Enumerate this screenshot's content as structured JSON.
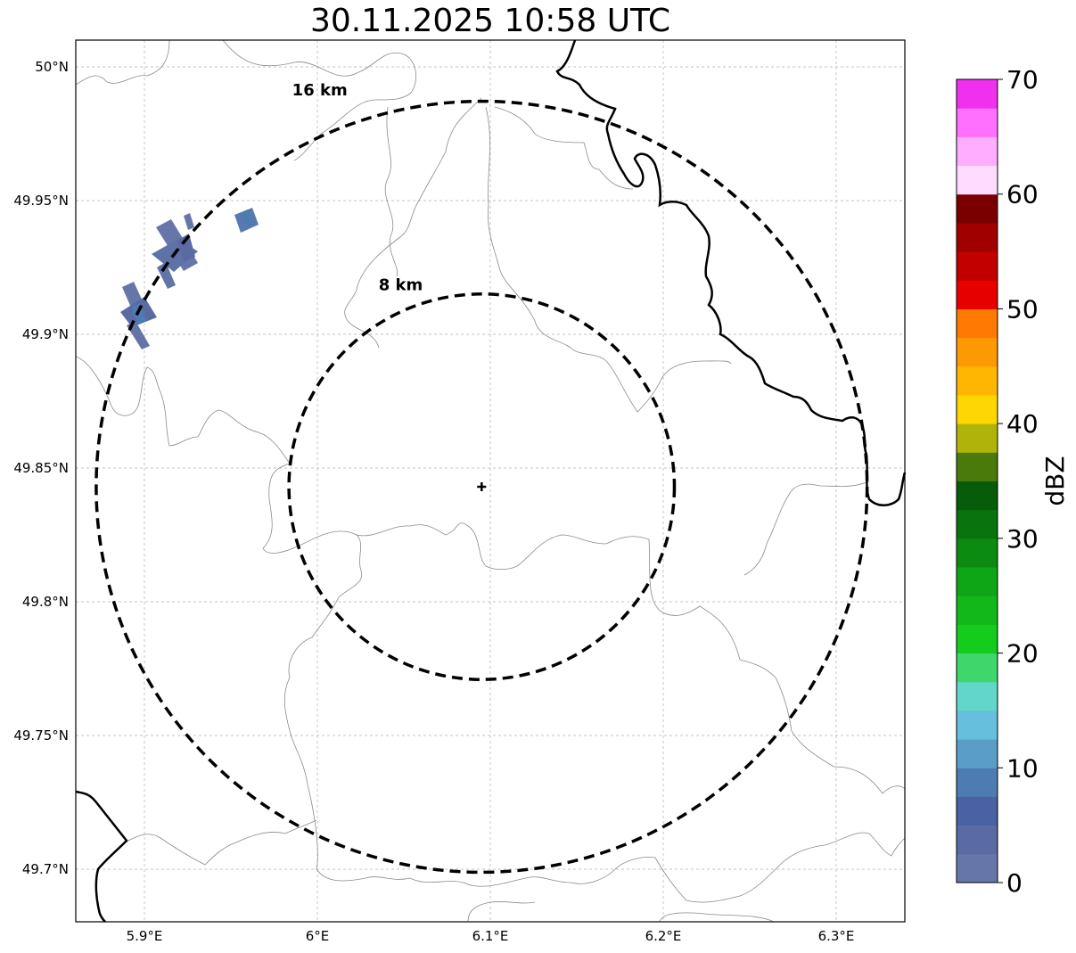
{
  "map": {
    "title": "30.11.2025 10:58 UTC",
    "radar_site": {
      "lat": 49.843,
      "lon": 6.095,
      "marker": "plus-marker"
    },
    "lat_ticks": [
      {
        "value": 50.0,
        "label": "50°N"
      },
      {
        "value": 49.95,
        "label": "49.95°N"
      },
      {
        "value": 49.9,
        "label": "49.9°N"
      },
      {
        "value": 49.85,
        "label": "49.85°N"
      },
      {
        "value": 49.8,
        "label": "49.8°N"
      },
      {
        "value": 49.75,
        "label": "49.75°N"
      },
      {
        "value": 49.7,
        "label": "49.7°N"
      }
    ],
    "lon_ticks": [
      {
        "value": 5.9,
        "label": "5.9°E"
      },
      {
        "value": 6.0,
        "label": "6°E"
      },
      {
        "value": 6.1,
        "label": "6.1°E"
      },
      {
        "value": 6.2,
        "label": "6.2°E"
      },
      {
        "value": 6.3,
        "label": "6.3°E"
      }
    ],
    "range_rings": [
      {
        "radius_km": 8,
        "label": "8 km"
      },
      {
        "radius_km": 16,
        "label": "16 km"
      }
    ],
    "colorbar": {
      "label": "dBZ",
      "min": 0,
      "max": 70,
      "tick_labels": [
        "0",
        "10",
        "20",
        "30",
        "40",
        "50",
        "60",
        "70"
      ],
      "colors": [
        "#6676a8",
        "#5a6ba3",
        "#4a62a4",
        "#4e7bb2",
        "#5a9ec8",
        "#66bfdc",
        "#62d6c8",
        "#3fd66b",
        "#14cc1e",
        "#12b81a",
        "#0ea616",
        "#0b8c10",
        "#09740d",
        "#065c08",
        "#4a7a09",
        "#b0b40a",
        "#fed703",
        "#fdb703",
        "#fd9a03",
        "#fe7a03",
        "#e60000",
        "#c20000",
        "#a00000",
        "#7a0000",
        "#ffdcff",
        "#ffaeff",
        "#ff70ff",
        "#f030ee"
      ]
    }
  }
}
